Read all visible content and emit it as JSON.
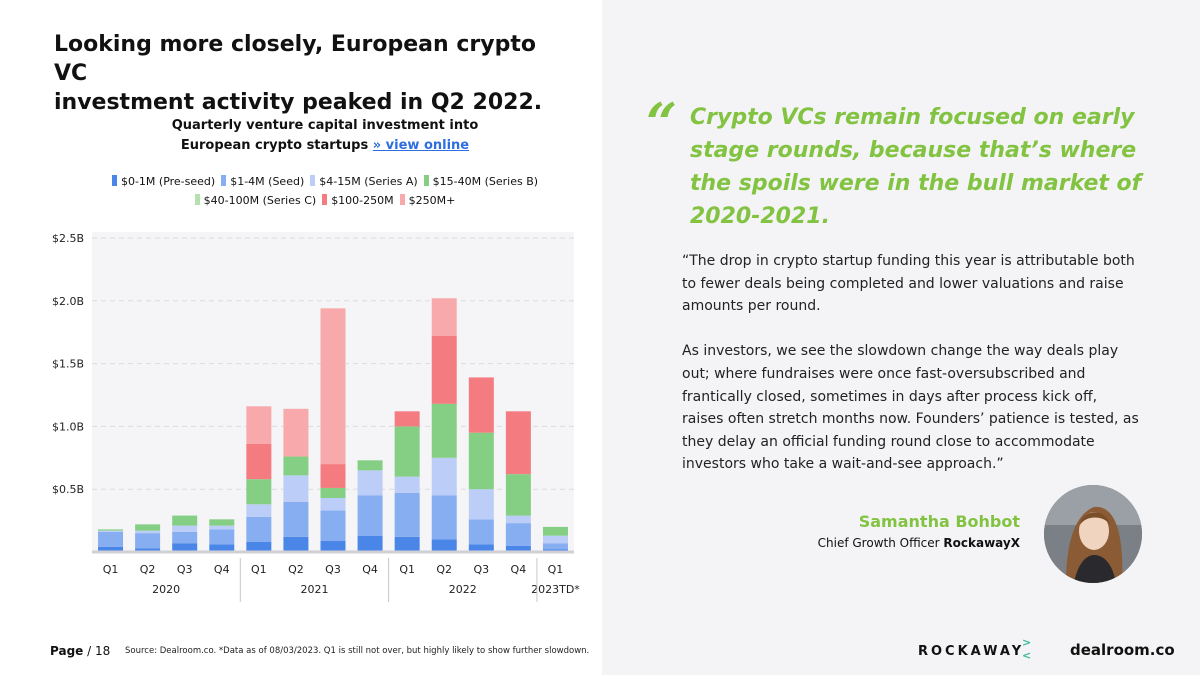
{
  "headline": [
    "Looking more closely, European crypto VC",
    "investment activity peaked in Q2 2022."
  ],
  "chart_title_line1": "Quarterly venture capital investment into",
  "chart_title_line2": "European crypto startups",
  "view_online": "» view online",
  "chart_data": {
    "type": "bar",
    "stacked": true,
    "categories": [
      "Q1 2020",
      "Q2 2020",
      "Q3 2020",
      "Q4 2020",
      "Q1 2021",
      "Q2 2021",
      "Q3 2021",
      "Q4 2021",
      "Q1 2022",
      "Q2 2022",
      "Q3 2022",
      "Q4 2022",
      "Q1 2023TD*"
    ],
    "quarter_labels": [
      "Q1",
      "Q2",
      "Q3",
      "Q4",
      "Q1",
      "Q2",
      "Q3",
      "Q4",
      "Q1",
      "Q2",
      "Q3",
      "Q4",
      "Q1"
    ],
    "year_groups": [
      {
        "label": "2020",
        "start": 0,
        "end": 3
      },
      {
        "label": "2021",
        "start": 4,
        "end": 7
      },
      {
        "label": "2022",
        "start": 8,
        "end": 11
      },
      {
        "label": "2023TD*",
        "start": 12,
        "end": 12
      }
    ],
    "yticks": [
      0.5,
      1.0,
      1.5,
      2.0,
      2.5
    ],
    "ytick_labels": [
      "$0.5B",
      "$1.0B",
      "$1.5B",
      "$2.0B",
      "$2.5B"
    ],
    "ylim": [
      0,
      2.5
    ],
    "series": [
      {
        "name": "$0-1M (Pre-seed)",
        "color": "#4a86e8",
        "values": [
          0.04,
          0.03,
          0.07,
          0.06,
          0.08,
          0.12,
          0.09,
          0.13,
          0.12,
          0.1,
          0.06,
          0.05,
          0.02
        ]
      },
      {
        "name": "$1-4M (Seed)",
        "color": "#86aef0",
        "values": [
          0.12,
          0.12,
          0.09,
          0.12,
          0.2,
          0.28,
          0.24,
          0.32,
          0.35,
          0.35,
          0.2,
          0.18,
          0.05
        ]
      },
      {
        "name": "$4-15M (Series A)",
        "color": "#bccdf8",
        "values": [
          0.01,
          0.02,
          0.05,
          0.03,
          0.1,
          0.21,
          0.1,
          0.2,
          0.13,
          0.3,
          0.24,
          0.06,
          0.06
        ]
      },
      {
        "name": "$15-40M (Series B)",
        "color": "#84cf84",
        "values": [
          0.01,
          0.05,
          0.08,
          0.05,
          0.2,
          0.15,
          0.08,
          0.08,
          0.4,
          0.43,
          0.45,
          0.33,
          0.07
        ]
      },
      {
        "name": "$40-100M (Series C)",
        "color": "#b5e0b0",
        "values": [
          0,
          0,
          0,
          0,
          0,
          0,
          0,
          0,
          0,
          0,
          0,
          0,
          0
        ]
      },
      {
        "name": "$100-250M",
        "color": "#f47b80",
        "values": [
          0,
          0,
          0,
          0,
          0.28,
          0,
          0.19,
          0,
          0.12,
          0.54,
          0.44,
          0.5,
          0
        ]
      },
      {
        "name": "$250M+",
        "color": "#f8a9ab",
        "values": [
          0,
          0,
          0,
          0,
          0.3,
          0.38,
          1.24,
          0,
          0,
          0.3,
          0,
          0,
          0
        ]
      }
    ]
  },
  "legend": [
    {
      "label": "$0-1M (Pre-seed)",
      "color": "#4a86e8"
    },
    {
      "label": "$1-4M (Seed)",
      "color": "#86aef0"
    },
    {
      "label": "$4-15M (Series A)",
      "color": "#bccdf8"
    },
    {
      "label": "$15-40M (Series B)",
      "color": "#84cf84"
    },
    {
      "label": "$40-100M (Series C)",
      "color": "#b5e0b0"
    },
    {
      "label": "$100-250M",
      "color": "#f47b80"
    },
    {
      "label": "$250M+",
      "color": "#f8a9ab"
    }
  ],
  "page_label": "Page",
  "page_number": "/ 18",
  "source": "Source: Dealroom.co.  *Data as of 08/03/2023. Q1 is still not over, but highly likely to show further slowdown.",
  "quote_mark": "“",
  "pull_quote": "Crypto VCs remain focused on early stage rounds, because that’s where the spoils were in the bull market of 2020-2021.",
  "body_paragraphs": [
    "“The drop in crypto startup funding this year is attributable both to fewer deals being completed and lower valuations and raise amounts per round.",
    "As investors, we see the slowdown change the way deals play out; where fundraises were once fast-oversubscribed and frantically closed, sometimes in days after process kick off, raises often stretch months now. Founders’ patience is tested, as they delay an official funding round close to accommodate investors who take a wait-and-see approach.”"
  ],
  "person_name": "Samantha Bohbot",
  "person_role": "Chief Growth Officer",
  "person_company": "RockawayX",
  "logo_rockaway": "ROCKAWAY",
  "logo_dealroom": "dealroom.co",
  "colors": {
    "accent_green": "#82c341",
    "link_blue": "#2f6ee0",
    "panel_bg": "#f4f4f6"
  }
}
